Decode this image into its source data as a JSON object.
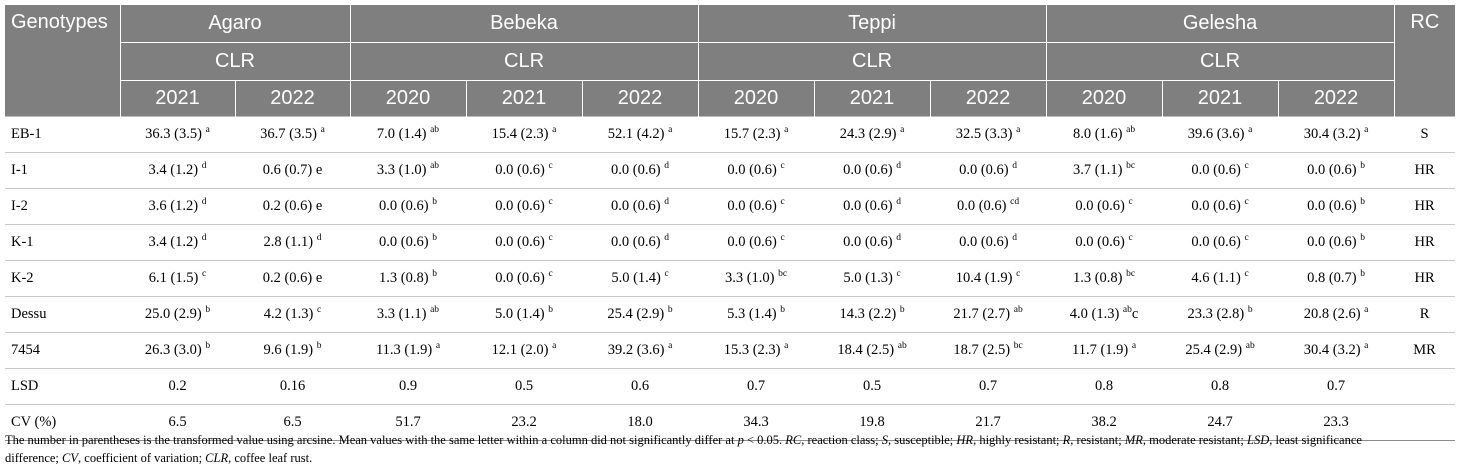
{
  "header": {
    "genotypes": "Genotypes",
    "rc": "RC",
    "locations": [
      {
        "name": "Agaro",
        "sub": "CLR",
        "years": [
          "2021",
          "2022"
        ]
      },
      {
        "name": "Bebeka",
        "sub": "CLR",
        "years": [
          "2020",
          "2021",
          "2022"
        ]
      },
      {
        "name": "Teppi",
        "sub": "CLR",
        "years": [
          "2020",
          "2021",
          "2022"
        ]
      },
      {
        "name": "Gelesha",
        "sub": "CLR",
        "years": [
          "2020",
          "2021",
          "2022"
        ]
      }
    ]
  },
  "rows": [
    {
      "genotype": "EB-1",
      "rc": "S",
      "cells": [
        {
          "v": "36.3 (3.5)",
          "sup": "a"
        },
        {
          "v": "36.7 (3.5)",
          "sup": "a"
        },
        {
          "v": "7.0 (1.4)",
          "sup": "ab"
        },
        {
          "v": "15.4 (2.3)",
          "sup": "a"
        },
        {
          "v": "52.1 (4.2)",
          "sup": "a"
        },
        {
          "v": "15.7 (2.3)",
          "sup": "a"
        },
        {
          "v": "24.3 (2.9)",
          "sup": "a"
        },
        {
          "v": "32.5 (3.3)",
          "sup": "a"
        },
        {
          "v": "8.0 (1.6)",
          "sup": "ab"
        },
        {
          "v": "39.6 (3.6)",
          "sup": "a"
        },
        {
          "v": "30.4 (3.2)",
          "sup": "a"
        }
      ]
    },
    {
      "genotype": "I-1",
      "rc": "HR",
      "cells": [
        {
          "v": "3.4 (1.2)",
          "sup": "d"
        },
        {
          "v": "0.6 (0.7) e",
          "sup": ""
        },
        {
          "v": "3.3 (1.0)",
          "sup": "ab"
        },
        {
          "v": "0.0 (0.6)",
          "sup": "c"
        },
        {
          "v": "0.0 (0.6)",
          "sup": "d"
        },
        {
          "v": "0.0 (0.6)",
          "sup": "c"
        },
        {
          "v": "0.0 (0.6)",
          "sup": "d"
        },
        {
          "v": "0.0 (0.6)",
          "sup": "d"
        },
        {
          "v": "3.7 (1.1)",
          "sup": "bc"
        },
        {
          "v": "0.0 (0.6)",
          "sup": "c"
        },
        {
          "v": "0.0 (0.6)",
          "sup": "b"
        }
      ]
    },
    {
      "genotype": "I-2",
      "rc": "HR",
      "cells": [
        {
          "v": "3.6 (1.2)",
          "sup": "d"
        },
        {
          "v": "0.2 (0.6) e",
          "sup": ""
        },
        {
          "v": "0.0 (0.6)",
          "sup": "b"
        },
        {
          "v": "0.0 (0.6)",
          "sup": "c"
        },
        {
          "v": "0.0 (0.6)",
          "sup": "d"
        },
        {
          "v": "0.0 (0.6)",
          "sup": "c"
        },
        {
          "v": "0.0 (0.6)",
          "sup": "d"
        },
        {
          "v": "0.0 (0.6)",
          "sup": "cd"
        },
        {
          "v": "0.0 (0.6)",
          "sup": "c"
        },
        {
          "v": "0.0 (0.6)",
          "sup": "c"
        },
        {
          "v": "0.0 (0.6)",
          "sup": "b"
        }
      ]
    },
    {
      "genotype": "K-1",
      "rc": "HR",
      "cells": [
        {
          "v": "3.4 (1.2)",
          "sup": "d"
        },
        {
          "v": "2.8 (1.1)",
          "sup": "d"
        },
        {
          "v": "0.0 (0.6)",
          "sup": "b"
        },
        {
          "v": "0.0 (0.6)",
          "sup": "c"
        },
        {
          "v": "0.0 (0.6)",
          "sup": "d"
        },
        {
          "v": "0.0 (0.6)",
          "sup": "c"
        },
        {
          "v": "0.0 (0.6)",
          "sup": "d"
        },
        {
          "v": "0.0 (0.6)",
          "sup": "d"
        },
        {
          "v": "0.0 (0.6)",
          "sup": "c"
        },
        {
          "v": "0.0 (0.6)",
          "sup": "c"
        },
        {
          "v": "0.0 (0.6)",
          "sup": "b"
        }
      ]
    },
    {
      "genotype": "K-2",
      "rc": "HR",
      "cells": [
        {
          "v": "6.1 (1.5)",
          "sup": "c"
        },
        {
          "v": "0.2 (0.6) e",
          "sup": ""
        },
        {
          "v": "1.3 (0.8)",
          "sup": "b"
        },
        {
          "v": "0.0 (0.6)",
          "sup": "c"
        },
        {
          "v": "5.0 (1.4)",
          "sup": "c"
        },
        {
          "v": "3.3 (1.0)",
          "sup": "bc"
        },
        {
          "v": "5.0 (1.3)",
          "sup": "c"
        },
        {
          "v": "10.4 (1.9)",
          "sup": "c"
        },
        {
          "v": "1.3 (0.8)",
          "sup": "bc"
        },
        {
          "v": "4.6 (1.1)",
          "sup": "c"
        },
        {
          "v": "0.8 (0.7)",
          "sup": "b"
        }
      ]
    },
    {
      "genotype": "Dessu",
      "rc": "R",
      "cells": [
        {
          "v": "25.0 (2.9)",
          "sup": "b"
        },
        {
          "v": "4.2 (1.3)",
          "sup": "c"
        },
        {
          "v": "3.3 (1.1)",
          "sup": "ab"
        },
        {
          "v": "5.0 (1.4)",
          "sup": "b"
        },
        {
          "v": "25.4 (2.9)",
          "sup": "b"
        },
        {
          "v": "5.3 (1.4)",
          "sup": "b"
        },
        {
          "v": "14.3 (2.2)",
          "sup": "b"
        },
        {
          "v": "21.7 (2.7)",
          "sup": "ab"
        },
        {
          "v": "4.0 (1.3)",
          "sup": "ab",
          "tail": "c"
        },
        {
          "v": "23.3 (2.8)",
          "sup": "b"
        },
        {
          "v": "20.8 (2.6)",
          "sup": "a"
        }
      ]
    },
    {
      "genotype": "7454",
      "rc": "MR",
      "cells": [
        {
          "v": "26.3 (3.0)",
          "sup": "b"
        },
        {
          "v": "9.6 (1.9)",
          "sup": "b"
        },
        {
          "v": "11.3 (1.9)",
          "sup": "a"
        },
        {
          "v": "12.1 (2.0)",
          "sup": "a"
        },
        {
          "v": "39.2 (3.6)",
          "sup": "a"
        },
        {
          "v": "15.3 (2.3)",
          "sup": "a"
        },
        {
          "v": "18.4 (2.5)",
          "sup": "ab"
        },
        {
          "v": "18.7 (2.5)",
          "sup": "bc"
        },
        {
          "v": "11.7 (1.9)",
          "sup": "a"
        },
        {
          "v": "25.4 (2.9)",
          "sup": "ab"
        },
        {
          "v": "30.4 (3.2)",
          "sup": "a"
        }
      ]
    },
    {
      "genotype": "LSD",
      "rc": "",
      "cells": [
        {
          "v": "0.2",
          "sup": ""
        },
        {
          "v": "0.16",
          "sup": ""
        },
        {
          "v": "0.9",
          "sup": ""
        },
        {
          "v": "0.5",
          "sup": ""
        },
        {
          "v": "0.6",
          "sup": ""
        },
        {
          "v": "0.7",
          "sup": ""
        },
        {
          "v": "0.5",
          "sup": ""
        },
        {
          "v": "0.7",
          "sup": ""
        },
        {
          "v": "0.8",
          "sup": ""
        },
        {
          "v": "0.8",
          "sup": ""
        },
        {
          "v": "0.7",
          "sup": ""
        }
      ]
    },
    {
      "genotype": "CV (%)",
      "rc": "",
      "cells": [
        {
          "v": "6.5",
          "sup": ""
        },
        {
          "v": "6.5",
          "sup": ""
        },
        {
          "v": "51.7",
          "sup": ""
        },
        {
          "v": "23.2",
          "sup": ""
        },
        {
          "v": "18.0",
          "sup": ""
        },
        {
          "v": "34.3",
          "sup": ""
        },
        {
          "v": "19.8",
          "sup": ""
        },
        {
          "v": "21.7",
          "sup": ""
        },
        {
          "v": "38.2",
          "sup": ""
        },
        {
          "v": "24.7",
          "sup": ""
        },
        {
          "v": "23.3",
          "sup": ""
        }
      ]
    }
  ],
  "footnote": {
    "s1": "The number in parentheses is the transformed value using arcsine. Mean values with the same letter within a column did not significantly differ at ",
    "p": "p",
    "s2": " < 0.05. ",
    "rc_abbr": "RC",
    "rc_def": ", reaction class; ",
    "s_abbr": "S",
    "s_def": ", susceptible; ",
    "hr_abbr": "HR",
    "hr_def": ", highly resistant; ",
    "r_abbr": "R",
    "r_def": ", resistant; ",
    "mr_abbr": "MR",
    "mr_def": ", moderate resistant; ",
    "lsd_abbr": "LSD",
    "lsd_def": ", least significance",
    "line2a": "difference; ",
    "cv_abbr": "CV",
    "cv_def": ", coefficient of variation; ",
    "clr_abbr": "CLR",
    "clr_def": ", coffee leaf rust."
  }
}
